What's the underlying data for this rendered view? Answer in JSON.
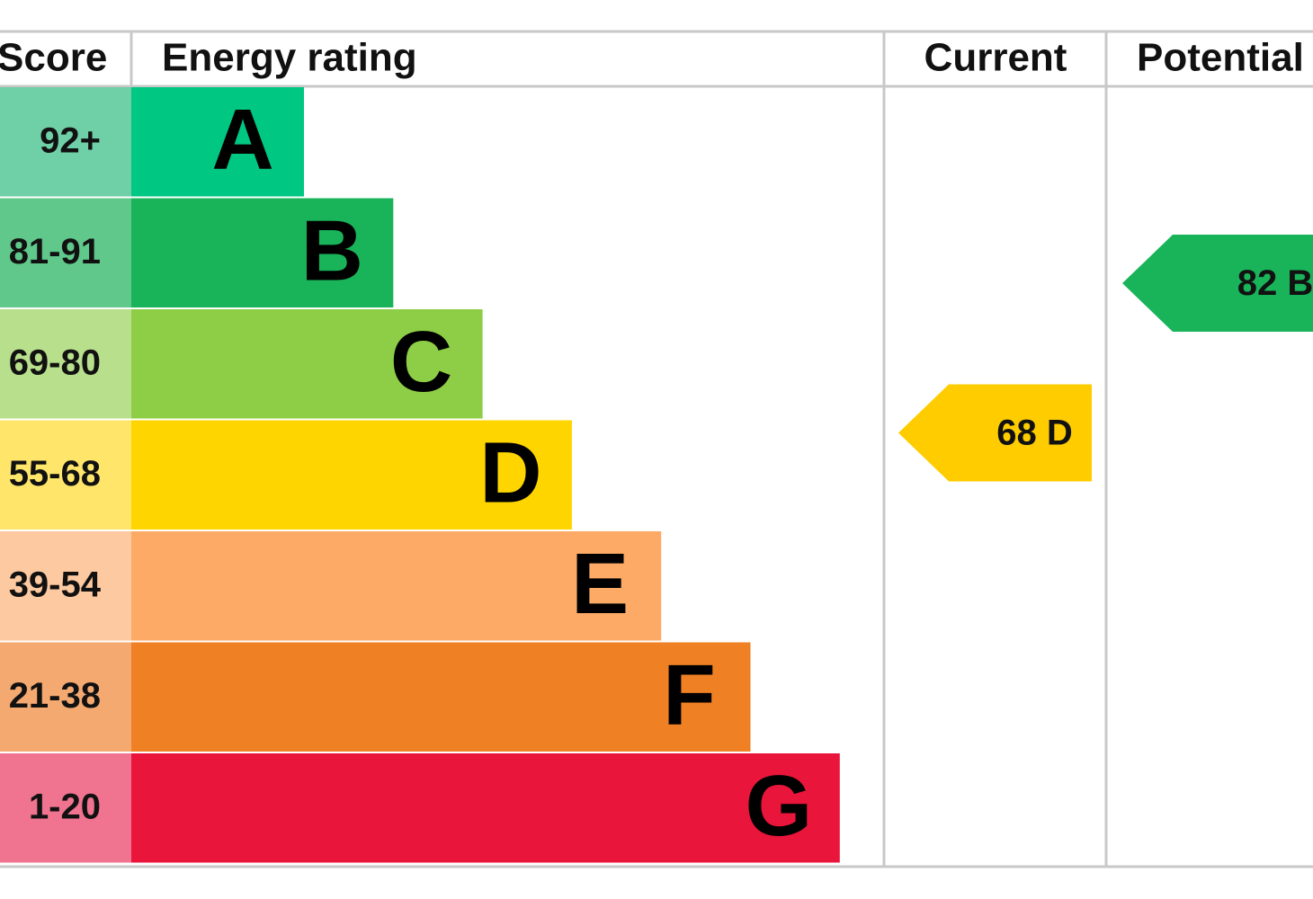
{
  "header": {
    "score": "Score",
    "rating": "Energy rating",
    "current": "Current",
    "potential": "Potential"
  },
  "bands": [
    {
      "score": "92+",
      "letter": "A",
      "color": "#00c781",
      "light": "#6fcfa6"
    },
    {
      "score": "81-91",
      "letter": "B",
      "color": "#19b459",
      "light": "#5fc88a"
    },
    {
      "score": "69-80",
      "letter": "C",
      "color": "#8dce46",
      "light": "#b8e08c"
    },
    {
      "score": "55-68",
      "letter": "D",
      "color": "#ffd500",
      "light": "#ffe66b"
    },
    {
      "score": "39-54",
      "letter": "E",
      "color": "#fcaa65",
      "light": "#fdc9a0"
    },
    {
      "score": "21-38",
      "letter": "F",
      "color": "#ef8023",
      "light": "#f4a971"
    },
    {
      "score": "1-20",
      "letter": "G",
      "color": "#e9153b",
      "light": "#f07390"
    }
  ],
  "current": {
    "value": 68,
    "letter": "D",
    "color": "#ffcc00"
  },
  "potential": {
    "value": 82,
    "letter": "B",
    "color": "#19b459"
  }
}
